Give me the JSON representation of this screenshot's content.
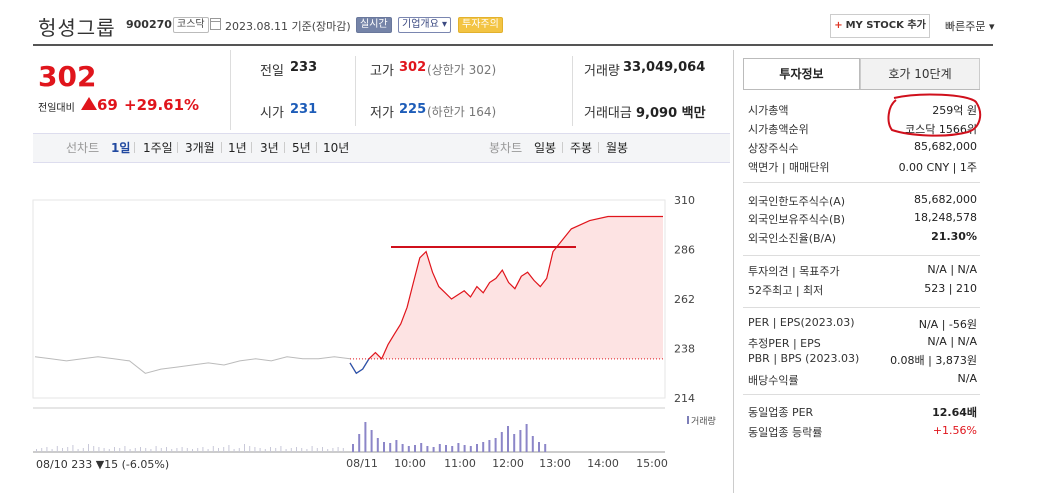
{
  "header": {
    "title": "헝셩그룹",
    "code": "900270",
    "market": "코스닥",
    "date": "2023.08.11 기준(장마감)",
    "realtime": "실시간",
    "corp_info": "기업개요 ▾",
    "warning": "투자주의",
    "mystock_label": "MY STOCK 추가",
    "mystock_plus": "+",
    "quick_order": "빠른주문 ▾"
  },
  "summary": {
    "price": "302",
    "prev_label": "전일대비",
    "change": "69",
    "change_pct": "+29.61%",
    "prev_close_label": "전일",
    "prev_close": "233",
    "open_label": "시가",
    "open": "231",
    "high_label": "고가",
    "high": "302",
    "high_sub": "(상한가 302)",
    "low_label": "저가",
    "low": "225",
    "low_sub": "(하한가 164)",
    "volume_label": "거래량",
    "volume": "33,049,064",
    "amount_label": "거래대금",
    "amount": "9,090 백만"
  },
  "periods": {
    "line_label": "선차트",
    "items": [
      "1일",
      "1주일",
      "3개월",
      "1년",
      "3년",
      "5년",
      "10년"
    ],
    "selected": "1일",
    "candle_label": "봉차트",
    "candles": [
      "일봉",
      "주봉",
      "월봉"
    ]
  },
  "chart_data": {
    "type": "line",
    "y_ticks": [
      "310",
      "286",
      "262",
      "238",
      "214"
    ],
    "ylim": [
      214,
      310
    ],
    "x_ticks": [
      "08/10",
      "08/11",
      "10:00",
      "11:00",
      "12:00",
      "13:00",
      "14:00",
      "15:00"
    ],
    "prev_close": 233,
    "prev_day_info": "08/10  233 ▼15 (-6.05%)",
    "volume_label": "거래량",
    "series": [
      {
        "values": [
          234,
          233,
          232,
          233,
          234,
          233,
          232,
          226,
          228,
          229,
          230,
          231,
          230,
          232,
          233,
          232,
          234,
          233,
          233,
          234,
          233
        ]
      },
      {
        "values": [
          231,
          226,
          228,
          233,
          236,
          233,
          240,
          245,
          250,
          258,
          270,
          282,
          285,
          275,
          268,
          265,
          262,
          264,
          266,
          263,
          268,
          265,
          270,
          272,
          276,
          270,
          267,
          273,
          275,
          271,
          268,
          272,
          285,
          296,
          300,
          302,
          302,
          302,
          302
        ]
      }
    ]
  },
  "panel": {
    "tab_invest": "투자정보",
    "tab_hoga": "호가 10단계",
    "rows": [
      {
        "k": "시가총액",
        "v": "259억 원"
      },
      {
        "k": "시가총액순위",
        "v": "코스닥 1566위"
      },
      {
        "k": "상장주식수",
        "v": "85,682,000"
      },
      {
        "k": "액면가 | 매매단위",
        "v": "0.00 CNY | 1주"
      },
      {
        "k": "외국인한도주식수(A)",
        "v": "85,682,000"
      },
      {
        "k": "외국인보유주식수(B)",
        "v": "18,248,578"
      },
      {
        "k": "외국인소진율(B/A)",
        "v": "21.30%"
      },
      {
        "k": "투자의견 | 목표주가",
        "v": "N/A | N/A"
      },
      {
        "k": "52주최고 | 최저",
        "v": "523 | 210"
      },
      {
        "k": "PER | EPS(2023.03)",
        "v": "N/A | -56원"
      },
      {
        "k": "추정PER | EPS",
        "v": "N/A | N/A"
      },
      {
        "k": "PBR | BPS (2023.03)",
        "v": "0.08배 | 3,873원"
      },
      {
        "k": "배당수익률",
        "v": "N/A"
      },
      {
        "k": "동일업종 PER",
        "v": "12.64배"
      },
      {
        "k": "동일업종 등락률",
        "v": "+1.56%"
      }
    ]
  },
  "colors": {
    "up": "#e0151c",
    "down": "#1d5cb8",
    "area": "#fde3e3",
    "annotation": "#d0101c"
  }
}
